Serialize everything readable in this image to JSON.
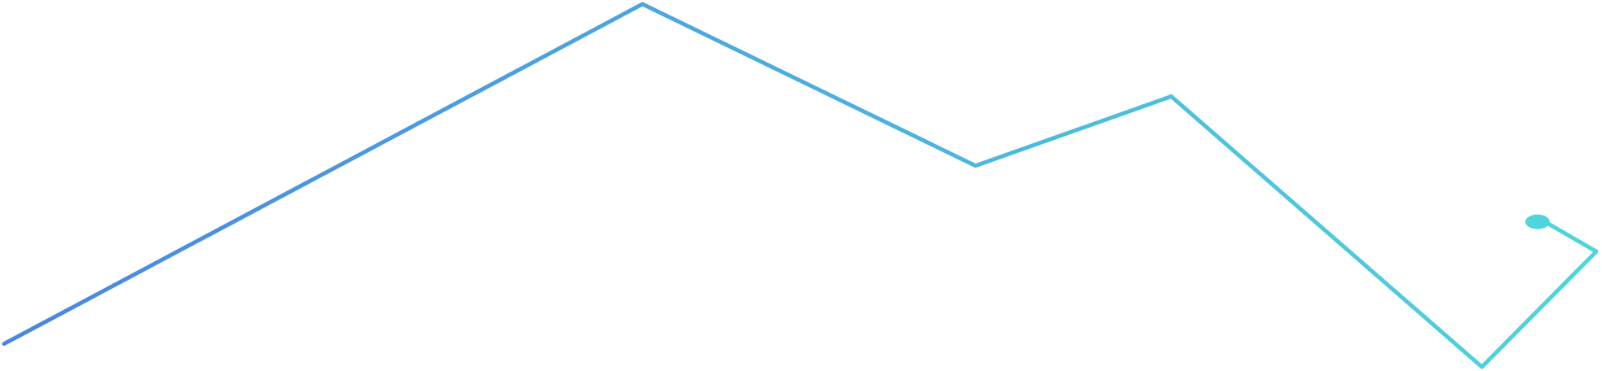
{
  "chart_data": {
    "type": "line",
    "title": "",
    "xlabel": "",
    "ylabel": "",
    "grid": false,
    "legend": "none",
    "x": [
      0,
      1,
      2,
      3,
      4,
      5,
      6
    ],
    "series": [
      {
        "values": [
          40,
          1070,
          580,
          790,
          -30,
          320,
          410
        ]
      }
    ],
    "ylim": [
      -30,
      1070
    ],
    "colors": {
      "line_start": "#4a86e0",
      "line_end": "#4fd6dc",
      "marker": "#4fd6dc",
      "background": "#ffffff"
    },
    "end_marker": {
      "type": "ellipse"
    }
  }
}
